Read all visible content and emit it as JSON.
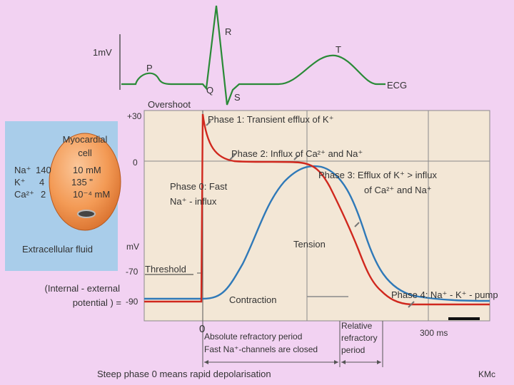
{
  "colors": {
    "page_bg": "#f2d2f2",
    "panel_bg": "#f3e7d6",
    "grid": "#8a8a8a",
    "membrane_potential": "#d0281e",
    "tension": "#2f79b8",
    "cell_fill": "#f39a55",
    "cell_box": "#a9cdea"
  },
  "ecg": {
    "amplitude_label": "1mV",
    "wave_labels": {
      "p": "P",
      "q": "Q",
      "r": "R",
      "s": "S",
      "t": "T"
    },
    "trace_label": "ECG"
  },
  "axis": {
    "overshoot": "Overshoot",
    "unit": "mV",
    "ticks": {
      "plus30": "+30",
      "zero": "0",
      "minus70": "-70",
      "minus90": "-90"
    },
    "threshold": "Threshold",
    "potential_line1": "(Internal - external",
    "potential_line2": "potential ) =",
    "time_zero": "0",
    "scale_label": "300 ms"
  },
  "phases": {
    "phase0_line1": "Phase 0: Fast",
    "phase0_line2": "Na⁺ - influx",
    "phase1": "Phase 1: Transient efflux of K⁺",
    "phase2": "Phase 2: Influx of Ca²⁺ and Na⁺",
    "phase3_line1": "Phase 3: Efflux of K⁺ > influx",
    "phase3_line2": "of Ca²⁺ and Na⁺",
    "phase4": "Phase 4: Na⁺ - K⁺ - pump"
  },
  "curves": {
    "tension": "Tension",
    "contraction": "Contraction"
  },
  "cell_box": {
    "title_line1": "Myocardial",
    "title_line2": "cell",
    "ions": [
      {
        "ion": "Na⁺",
        "outside": "140",
        "inside": "10 mM"
      },
      {
        "ion": "K⁺",
        "outside": "4",
        "inside": "135  \""
      },
      {
        "ion": "Ca²⁺",
        "outside": "2",
        "inside": "10⁻⁴ mM"
      }
    ],
    "caption": "Extracellular fluid"
  },
  "refractory": {
    "absolute_line1": "Absolute refractory period",
    "absolute_line2": "Fast Na⁺-channels are closed",
    "relative_line1": "Relative",
    "relative_line2": "refractory",
    "relative_line3": "period"
  },
  "footer": {
    "caption": "Steep phase 0 means rapid depolarisation",
    "credit": "KMc"
  }
}
